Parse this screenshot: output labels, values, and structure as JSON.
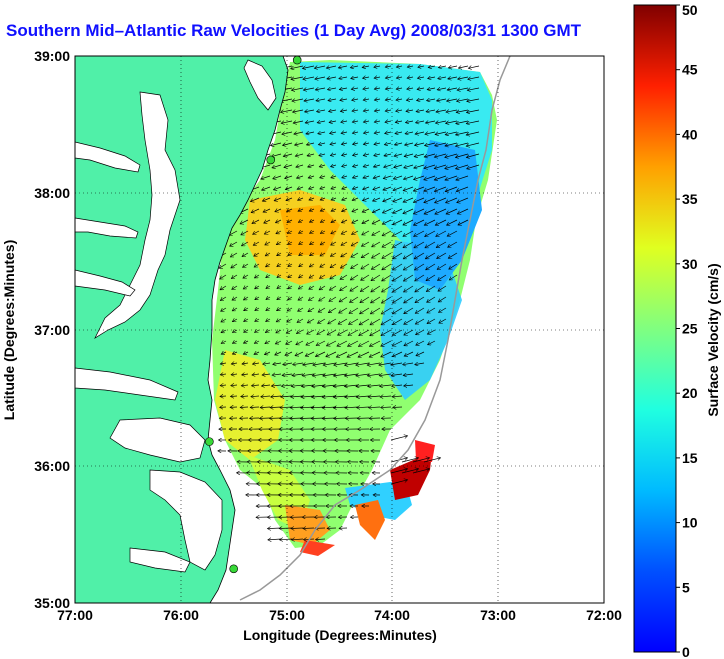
{
  "title": "Southern Mid–Atlantic Raw Velocities (1 Day Avg) 2008/03/31 1300 GMT",
  "xlabel": "Longitude (Degrees:Minutes)",
  "ylabel": "Latitude (Degrees:Minutes)",
  "colorbar_label": "Surface Velocity (cm/s)",
  "x_ticks": [
    "77:00",
    "76:00",
    "75:00",
    "74:00",
    "73:00",
    "72:00"
  ],
  "y_ticks": [
    "39:00",
    "38:00",
    "37:00",
    "36:00",
    "35:00"
  ],
  "colorbar_ticks": [
    "0",
    "5",
    "10",
    "15",
    "20",
    "25",
    "30",
    "35",
    "40",
    "45",
    "50"
  ],
  "colors": {
    "land": "#50f0a8",
    "title": "#1010ff",
    "coast": "#000000",
    "station": "#38d838"
  },
  "chart_data": {
    "type": "heatmap",
    "subtype": "current-velocity-map",
    "xlim": [
      -77,
      -72
    ],
    "ylim": [
      35,
      39
    ],
    "color_range": [
      0,
      50
    ],
    "colormap": "jet",
    "grid": true,
    "stations": [
      {
        "lon": -74.9,
        "lat": 38.97
      },
      {
        "lon": -75.15,
        "lat": 38.24
      },
      {
        "lon": -75.73,
        "lat": 36.18
      },
      {
        "lon": -75.5,
        "lat": 35.25
      }
    ]
  }
}
